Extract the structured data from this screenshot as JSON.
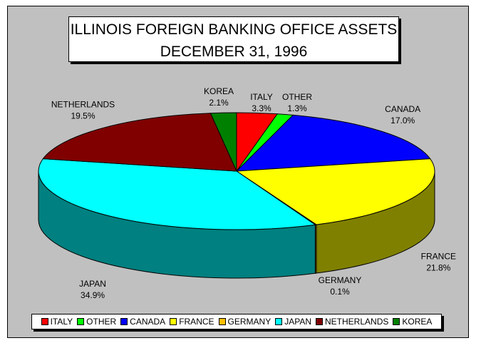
{
  "title_line1": "ILLINOIS FOREIGN BANKING OFFICE ASSETS",
  "title_line2": "DECEMBER 31, 1996",
  "chart_data": {
    "type": "pie",
    "title": "ILLINOIS FOREIGN BANKING OFFICE ASSETS DECEMBER 31, 1996",
    "style": "3d",
    "legend_position": "bottom",
    "slices": [
      {
        "label": "ITALY",
        "value": 3.3,
        "display": "3.3%",
        "color": "#ff0000",
        "side_color": "#800000"
      },
      {
        "label": "OTHER",
        "value": 1.3,
        "display": "1.3%",
        "color": "#00ff00",
        "side_color": "#008000"
      },
      {
        "label": "CANADA",
        "value": 17.0,
        "display": "17.0%",
        "color": "#0000ff",
        "side_color": "#000080"
      },
      {
        "label": "FRANCE",
        "value": 21.8,
        "display": "21.8%",
        "color": "#ffff00",
        "side_color": "#808000"
      },
      {
        "label": "GERMANY",
        "value": 0.1,
        "display": "0.1%",
        "color": "#ffc000",
        "side_color": "#806000"
      },
      {
        "label": "JAPAN",
        "value": 34.9,
        "display": "34.9%",
        "color": "#00ffff",
        "side_color": "#008080"
      },
      {
        "label": "NETHERLANDS",
        "value": 19.5,
        "display": "19.5%",
        "color": "#800000",
        "side_color": "#400000"
      },
      {
        "label": "KOREA",
        "value": 2.1,
        "display": "2.1%",
        "color": "#008000",
        "side_color": "#004000"
      }
    ]
  }
}
